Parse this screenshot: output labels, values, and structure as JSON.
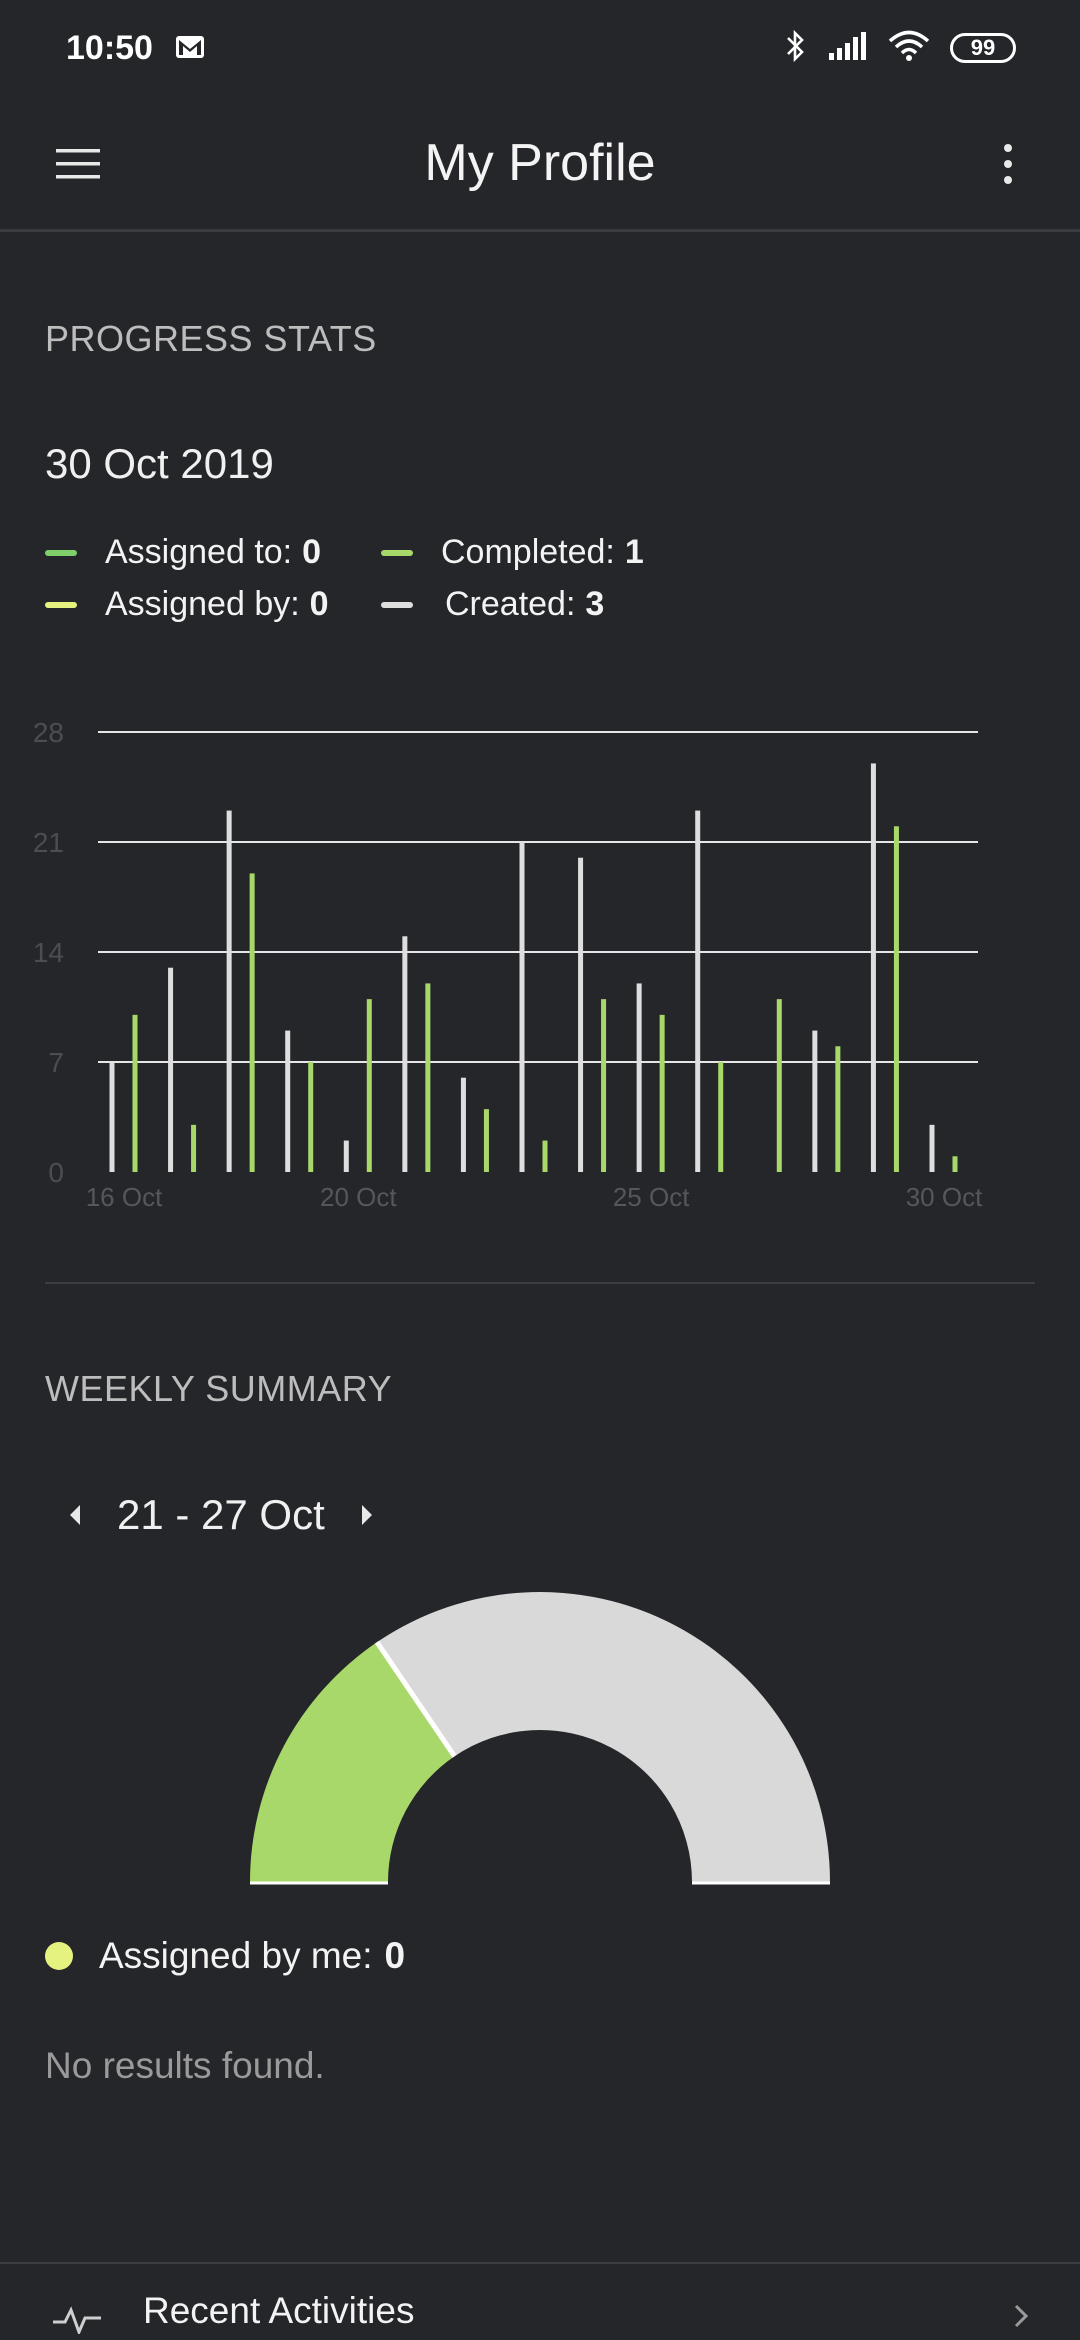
{
  "status_bar": {
    "time": "10:50",
    "battery": "99"
  },
  "app_bar": {
    "title": "My Profile"
  },
  "progress": {
    "section_title": "PROGRESS STATS",
    "date": "30 Oct 2019",
    "legend": {
      "assigned_to": {
        "label": "Assigned to:",
        "value": "0",
        "color": "#7fcf6a"
      },
      "completed": {
        "label": "Completed:",
        "value": "1",
        "color": "#a9d86a"
      },
      "assigned_by": {
        "label": "Assigned by:",
        "value": "0",
        "color": "#e6f280"
      },
      "created": {
        "label": "Created:",
        "value": "3",
        "color": "#dedede"
      }
    }
  },
  "chart_data": {
    "type": "bar",
    "x": [
      "16 Oct",
      "17 Oct",
      "18 Oct",
      "19 Oct",
      "20 Oct",
      "21 Oct",
      "22 Oct",
      "23 Oct",
      "24 Oct",
      "25 Oct",
      "26 Oct",
      "27 Oct",
      "28 Oct",
      "29 Oct",
      "30 Oct"
    ],
    "x_tick_labels": [
      "16 Oct",
      "20 Oct",
      "25 Oct",
      "30 Oct"
    ],
    "series": [
      {
        "name": "Created",
        "color": "#dedede",
        "values": [
          7,
          13,
          23,
          9,
          2,
          15,
          6,
          21,
          20,
          12,
          23,
          0,
          9,
          26,
          3
        ]
      },
      {
        "name": "Completed",
        "color": "#a9d86a",
        "values": [
          10,
          3,
          19,
          7,
          11,
          12,
          4,
          2,
          11,
          10,
          7,
          11,
          8,
          22,
          1
        ]
      }
    ],
    "y_ticks": [
      0,
      7,
      14,
      21,
      28
    ],
    "ylim": [
      0,
      28
    ],
    "grid": true
  },
  "weekly": {
    "section_title": "WEEKLY SUMMARY",
    "range": "21 - 27 Oct",
    "gauge": {
      "completed_share": 0.31,
      "completed_color": "#a9d86a",
      "rest_color": "#d9d9d9"
    },
    "assigned_by_me": {
      "label": "Assigned by me:",
      "value": "0"
    },
    "empty_text": "No results found."
  },
  "recent": {
    "label": "Recent Activities"
  }
}
